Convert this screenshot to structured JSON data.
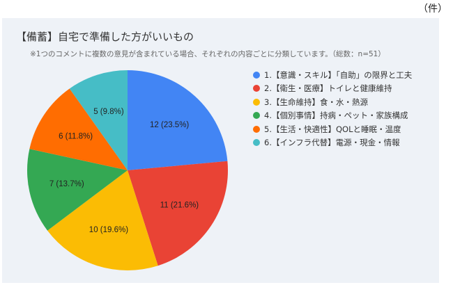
{
  "unit_label": "（件）",
  "chart_data": {
    "type": "pie",
    "title": "【備蓄】自宅で準備した方がいいもの",
    "subtitle": "※1つのコメントに複数の意見が含まれている場合、それぞれの内容ごとに分類しています。（総数：n=51）",
    "total": 51,
    "legend_position": "right",
    "categories": [
      "1.【意識・スキル】「自助」の限界と工夫",
      "2.【衛生・医療】トイレと健康維持",
      "3.【生命維持】食・水・熱源",
      "4.【個別事情】持病・ペット・家族構成",
      "5.【生活・快適性】QOLと睡眠・温度",
      "6.【インフラ代替】電源・現金・情報"
    ],
    "values": [
      12,
      11,
      10,
      7,
      6,
      5
    ],
    "percentages": [
      23.5,
      21.6,
      19.6,
      13.7,
      11.8,
      9.8
    ],
    "labels": [
      "12 (23.5%)",
      "11 (21.6%)",
      "10 (19.6%)",
      "7 (13.7%)",
      "6 (11.8%)",
      "5 (9.8%)"
    ],
    "colors": [
      "#4285f4",
      "#e94335",
      "#fbbc04",
      "#34a853",
      "#ff6d01",
      "#46bdc6"
    ]
  }
}
